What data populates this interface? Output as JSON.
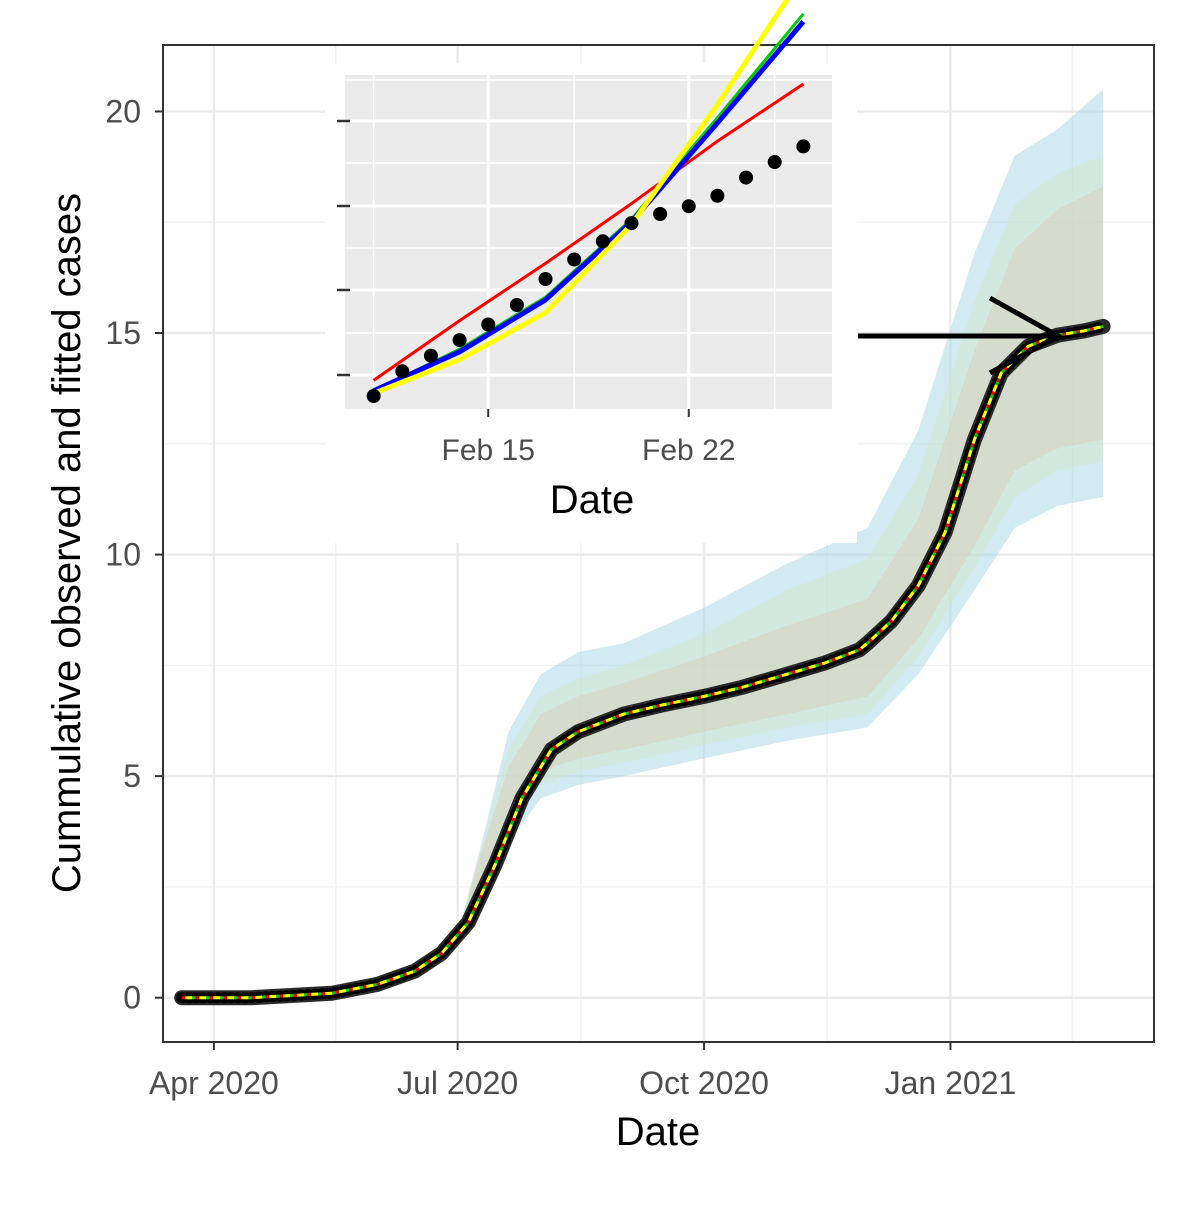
{
  "chart_data": [
    {
      "type": "line",
      "role": "main",
      "xlabel": "Date",
      "ylabel": "Cummulative observed and fitted cases",
      "x_ticks": [
        "Apr 2020",
        "Jul 2020",
        "Oct 2020",
        "Jan 2021"
      ],
      "y_ticks": [
        0,
        5,
        10,
        15,
        20
      ],
      "ylim": [
        -1,
        21.5
      ],
      "x_range": [
        "2020-03-13",
        "2021-03-18"
      ],
      "grid": true,
      "observed": {
        "x": [
          "2020-03-20",
          "2020-04-15",
          "2020-05-15",
          "2020-06-01",
          "2020-06-15",
          "2020-06-25",
          "2020-07-05",
          "2020-07-15",
          "2020-07-25",
          "2020-08-05",
          "2020-08-15",
          "2020-09-01",
          "2020-09-15",
          "2020-10-01",
          "2020-10-15",
          "2020-11-01",
          "2020-11-15",
          "2020-11-28",
          "2020-12-01",
          "2020-12-10",
          "2020-12-20",
          "2020-12-30",
          "2021-01-10",
          "2021-01-20",
          "2021-01-30",
          "2021-02-10",
          "2021-02-20",
          "2021-02-27"
        ],
        "y": [
          0,
          0,
          0.1,
          0.3,
          0.6,
          1.0,
          1.7,
          3.0,
          4.5,
          5.6,
          6.0,
          6.4,
          6.6,
          6.8,
          7.0,
          7.3,
          7.55,
          7.85,
          8.0,
          8.5,
          9.3,
          10.5,
          12.6,
          14.1,
          14.7,
          14.95,
          15.05,
          15.15
        ]
      },
      "fit": {
        "x": [
          "2020-03-20",
          "2020-04-15",
          "2020-05-15",
          "2020-06-01",
          "2020-06-15",
          "2020-06-25",
          "2020-07-05",
          "2020-07-15",
          "2020-07-25",
          "2020-08-05",
          "2020-08-15",
          "2020-09-01",
          "2020-09-15",
          "2020-10-01",
          "2020-10-15",
          "2020-11-01",
          "2020-11-15",
          "2020-11-28",
          "2020-12-01",
          "2020-12-10",
          "2020-12-20",
          "2020-12-30",
          "2021-01-10",
          "2021-01-20",
          "2021-01-30",
          "2021-02-10",
          "2021-02-20",
          "2021-02-27"
        ],
        "y": [
          0,
          0,
          0.1,
          0.3,
          0.6,
          1.0,
          1.7,
          3.0,
          4.5,
          5.6,
          6.0,
          6.4,
          6.6,
          6.8,
          7.0,
          7.3,
          7.55,
          7.85,
          8.0,
          8.5,
          9.3,
          10.5,
          12.6,
          14.1,
          14.7,
          14.95,
          15.05,
          15.15
        ]
      },
      "bands": [
        {
          "color": "#add8e6",
          "x": [
            "2020-07-01",
            "2020-07-10",
            "2020-07-20",
            "2020-08-01",
            "2020-08-15",
            "2020-09-01",
            "2020-10-01",
            "2020-11-01",
            "2020-12-01",
            "2020-12-20",
            "2021-01-10",
            "2021-01-25",
            "2021-02-10",
            "2021-02-27"
          ],
          "upper": [
            1.4,
            3.5,
            6.0,
            7.3,
            7.8,
            8.0,
            8.8,
            9.8,
            10.6,
            12.8,
            16.8,
            19.0,
            19.6,
            20.5
          ],
          "lower": [
            1.3,
            2.0,
            3.5,
            4.5,
            4.8,
            5.0,
            5.4,
            5.8,
            6.1,
            7.3,
            9.2,
            10.6,
            11.1,
            11.3
          ]
        },
        {
          "color": "#cfe8cf",
          "x": [
            "2020-07-01",
            "2020-07-10",
            "2020-07-20",
            "2020-08-01",
            "2020-08-15",
            "2020-09-01",
            "2020-10-01",
            "2020-11-01",
            "2020-12-01",
            "2020-12-20",
            "2021-01-10",
            "2021-01-25",
            "2021-02-10",
            "2021-02-27"
          ],
          "upper": [
            1.4,
            3.4,
            5.6,
            6.8,
            7.2,
            7.5,
            8.2,
            9.2,
            9.9,
            11.8,
            15.7,
            17.9,
            18.6,
            19.0
          ],
          "lower": [
            1.3,
            2.2,
            3.8,
            4.8,
            5.1,
            5.3,
            5.7,
            6.1,
            6.4,
            7.7,
            9.7,
            11.3,
            11.9,
            12.1
          ]
        },
        {
          "color": "#d9d0bd",
          "x": [
            "2020-07-01",
            "2020-07-10",
            "2020-07-20",
            "2020-08-01",
            "2020-08-15",
            "2020-09-01",
            "2020-10-01",
            "2020-11-01",
            "2020-12-01",
            "2020-12-20",
            "2021-01-10",
            "2021-01-25",
            "2021-02-10",
            "2021-02-27"
          ],
          "upper": [
            1.4,
            3.3,
            5.2,
            6.4,
            6.8,
            7.1,
            7.7,
            8.4,
            9.0,
            10.8,
            14.6,
            16.9,
            17.8,
            18.3
          ],
          "lower": [
            1.3,
            2.4,
            4.0,
            5.1,
            5.4,
            5.6,
            6.0,
            6.4,
            6.8,
            8.1,
            10.2,
            11.9,
            12.4,
            12.6
          ]
        }
      ],
      "line_colors": [
        "#0000ff",
        "#ff0000",
        "#00cc00",
        "#ffff00"
      ],
      "arrow_color": "#000000"
    },
    {
      "type": "line",
      "role": "inset",
      "xlabel": "Date",
      "x_ticks": [
        "Feb 15",
        "Feb 22"
      ],
      "x_range": [
        0,
        1
      ],
      "x_minor": [
        "2021-02-11",
        "2021-02-18",
        "2021-02-25"
      ],
      "observed": {
        "x": [
          "2021-02-11",
          "2021-02-12",
          "2021-02-13",
          "2021-02-14",
          "2021-02-15",
          "2021-02-16",
          "2021-02-17",
          "2021-02-18",
          "2021-02-19",
          "2021-02-20",
          "2021-02-21",
          "2021-02-22",
          "2021-02-23",
          "2021-02-24",
          "2021-02-25",
          "2021-02-26"
        ],
        "y": [
          0.0,
          0.095,
          0.155,
          0.215,
          0.275,
          0.35,
          0.45,
          0.525,
          0.595,
          0.665,
          0.7,
          0.73,
          0.77,
          0.84,
          0.9,
          0.96
        ]
      },
      "series": [
        {
          "color": "#ff0000",
          "x": [
            "2021-02-11",
            "2021-02-14",
            "2021-02-17",
            "2021-02-20",
            "2021-02-23",
            "2021-02-26"
          ],
          "y": [
            0.06,
            0.29,
            0.51,
            0.74,
            0.98,
            1.2
          ]
        },
        {
          "color": "#00cc00",
          "x": [
            "2021-02-11",
            "2021-02-14",
            "2021-02-17",
            "2021-02-20",
            "2021-02-23",
            "2021-02-26"
          ],
          "y": [
            0.02,
            0.18,
            0.38,
            0.68,
            1.07,
            1.47
          ]
        },
        {
          "color": "#0000ff",
          "x": [
            "2021-02-11",
            "2021-02-14",
            "2021-02-17",
            "2021-02-20",
            "2021-02-23",
            "2021-02-26"
          ],
          "y": [
            0.02,
            0.17,
            0.37,
            0.67,
            1.05,
            1.44
          ]
        },
        {
          "color": "#ffff00",
          "x": [
            "2021-02-11",
            "2021-02-14",
            "2021-02-17",
            "2021-02-20",
            "2021-02-23",
            "2021-02-26"
          ],
          "y": [
            0.01,
            0.14,
            0.32,
            0.66,
            1.12,
            1.62
          ]
        }
      ]
    }
  ]
}
